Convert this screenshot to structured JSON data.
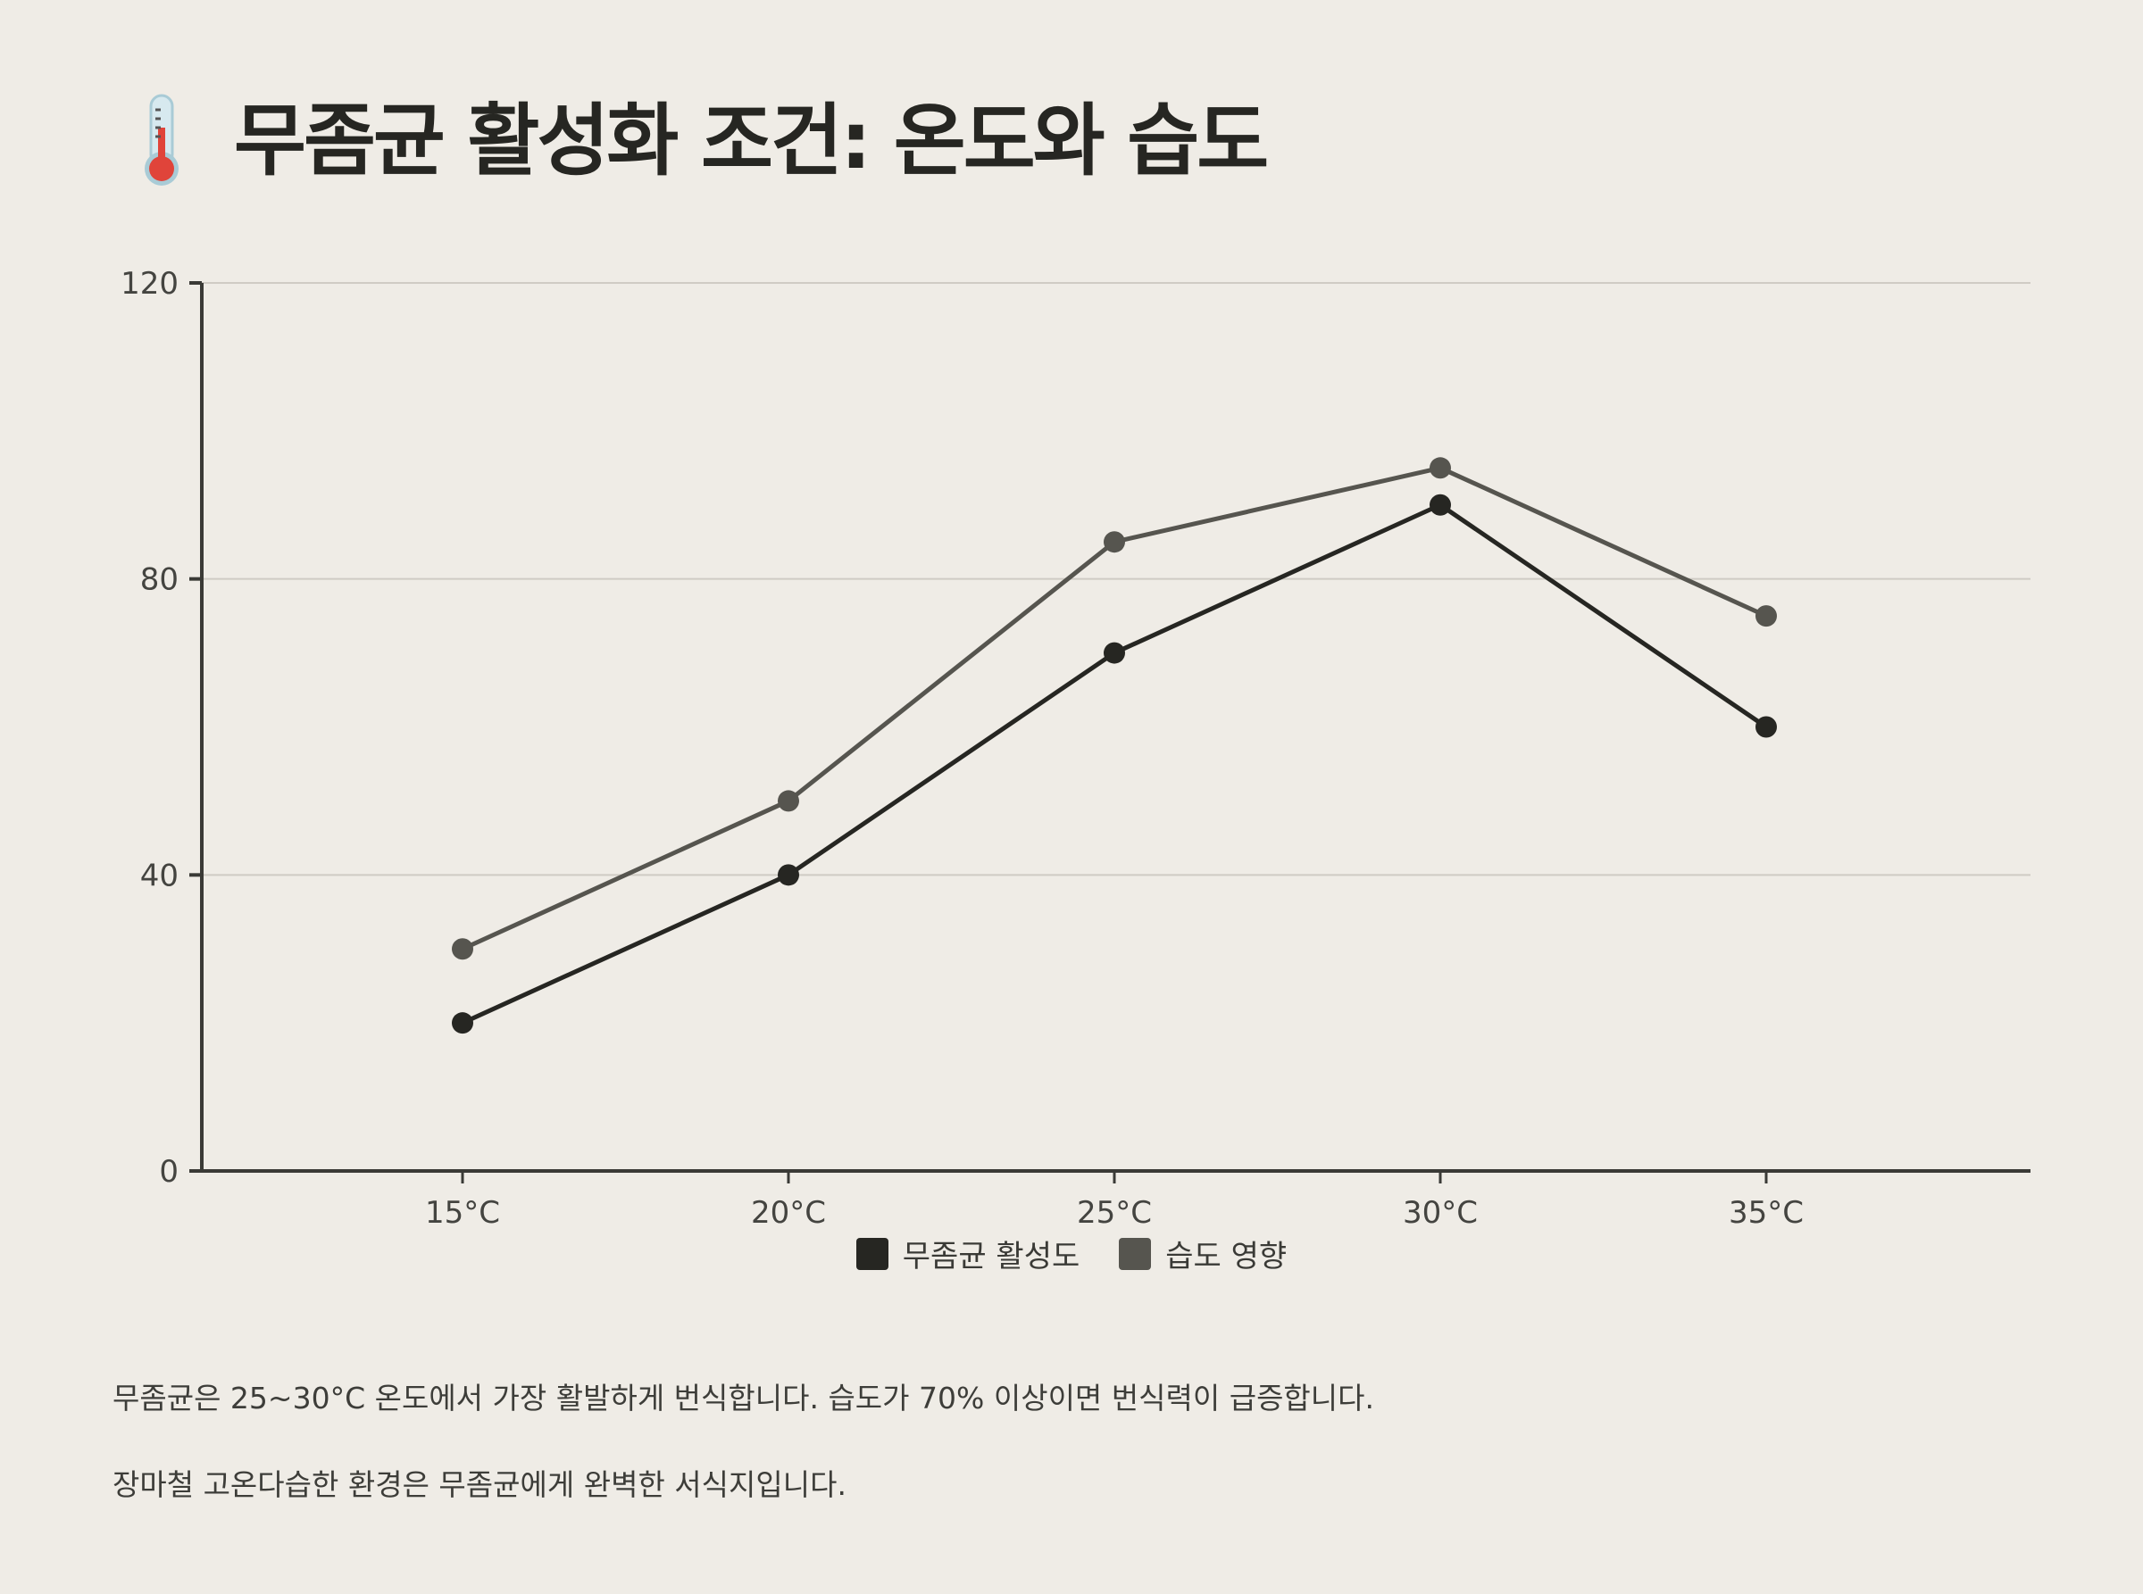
{
  "title": {
    "icon": "thermometer-icon",
    "text": "무좀균 활성화 조건: 온도와 습도"
  },
  "chart_data": {
    "type": "line",
    "categories": [
      "15°C",
      "20°C",
      "25°C",
      "30°C",
      "35°C"
    ],
    "series": [
      {
        "name": "무좀균 활성도",
        "values": [
          20,
          40,
          70,
          90,
          60
        ],
        "color": "#262622"
      },
      {
        "name": "습도 영향",
        "values": [
          30,
          50,
          85,
          95,
          75
        ],
        "color": "#56554f"
      }
    ],
    "ylim": [
      0,
      120
    ],
    "yticks": [
      "0",
      "40",
      "80",
      "120"
    ],
    "grid": true,
    "legend_position": "bottom-center"
  },
  "description": {
    "line1": "무좀균은 25~30°C 온도에서 가장 활발하게 번식합니다. 습도가 70% 이상이면 번식력이 급증합니다.",
    "line2": "장마철 고온다습한 환경은 무좀균에게 완벽한 서식지입니다."
  }
}
